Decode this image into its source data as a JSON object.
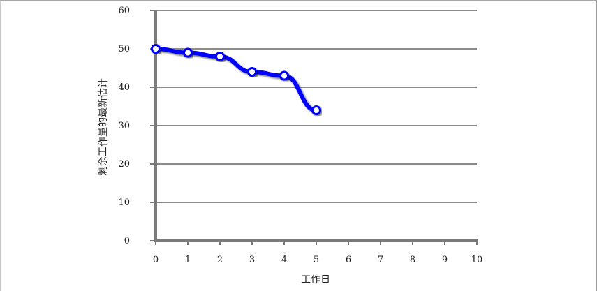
{
  "chart_data": {
    "type": "line",
    "xlabel": "工作日",
    "ylabel": "剩余工作量的最新估计",
    "xlim": [
      0,
      10
    ],
    "ylim": [
      0,
      60
    ],
    "x_ticks": [
      "0",
      "1",
      "2",
      "3",
      "4",
      "5",
      "6",
      "7",
      "8",
      "9",
      "10"
    ],
    "y_ticks": [
      "0",
      "10",
      "20",
      "30",
      "40",
      "50",
      "60"
    ],
    "grid": "horizontal",
    "series": [
      {
        "x": [
          0,
          1,
          2,
          3,
          4,
          5
        ],
        "values": [
          50,
          49,
          48,
          44,
          43,
          34
        ],
        "color": "#0000ff",
        "marker": "circle-white"
      }
    ]
  }
}
